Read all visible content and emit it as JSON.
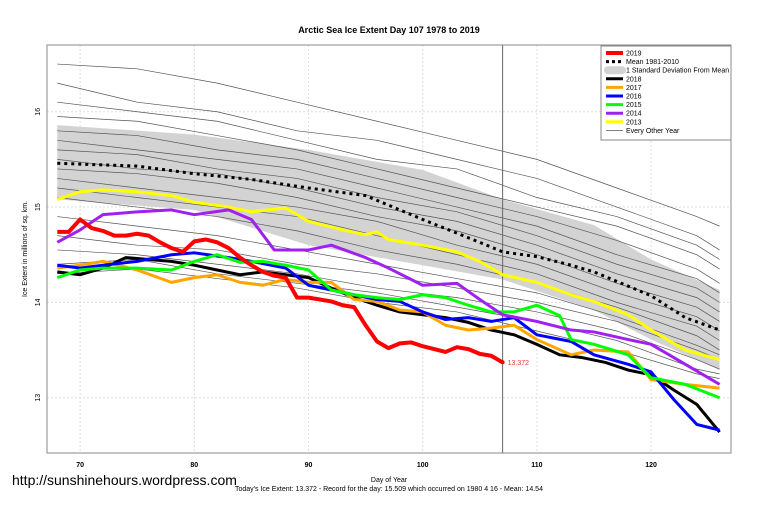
{
  "watermark": "http://sunshinehours.wordpress.com",
  "chart_data": {
    "type": "line",
    "title": "Arctic Sea Ice Extent Day 107 1978 to 2019",
    "xlabel": "Day of Year",
    "ylabel": "Ice Extent in millions of sq. km.",
    "subtitle": "Today's Ice Extent: 13.372  - Record for the day: 15.509 which occurred on 1980 4 16  - Mean: 14.54",
    "xlim": [
      67.1,
      127
    ],
    "ylim": [
      12.42,
      16.7
    ],
    "xticks": [
      70,
      80,
      90,
      100,
      110,
      120
    ],
    "yticks": [
      13,
      14,
      15,
      16
    ],
    "grid": true,
    "current_day": 107,
    "annotation": {
      "x": 107,
      "y": 13.372,
      "text": "13.372"
    },
    "legend_position": "top-right",
    "legend": [
      "2019",
      "Mean 1981-2010",
      "1 Standard Deviation From Mean",
      "2018",
      "2017",
      "2016",
      "2015",
      "2014",
      "2013",
      "Every Other Year"
    ],
    "sd_band": {
      "x": [
        68,
        80,
        90,
        100,
        107,
        115,
        120,
        126
      ],
      "upper": [
        15.86,
        15.76,
        15.6,
        15.39,
        15.08,
        14.81,
        14.45,
        14.13
      ],
      "lower": [
        15.08,
        14.97,
        14.6,
        14.39,
        14.24,
        13.92,
        13.61,
        13.29
      ]
    },
    "mean": {
      "name": "Mean 1981-2010",
      "color": "#000000",
      "x": [
        68,
        70,
        75,
        80,
        85,
        90,
        95,
        100,
        105,
        107,
        110,
        113,
        115,
        120,
        123,
        126
      ],
      "y": [
        15.46,
        15.45,
        15.43,
        15.35,
        15.29,
        15.2,
        15.12,
        14.87,
        14.63,
        14.53,
        14.48,
        14.39,
        14.32,
        14.07,
        13.84,
        13.71
      ]
    },
    "series": [
      {
        "name": "2019",
        "color": "#ff0000",
        "width": 4,
        "x": [
          68,
          69,
          70,
          71,
          72,
          73,
          74,
          75,
          76,
          77,
          78,
          79,
          80,
          81,
          82,
          83,
          84,
          85,
          86,
          87,
          88,
          89,
          90,
          91,
          92,
          93,
          94,
          95,
          96,
          97,
          98,
          99,
          100,
          101,
          102,
          103,
          104,
          105,
          106,
          107
        ],
        "y": [
          14.74,
          14.74,
          14.87,
          14.78,
          14.75,
          14.7,
          14.7,
          14.72,
          14.7,
          14.63,
          14.57,
          14.53,
          14.64,
          14.66,
          14.63,
          14.57,
          14.47,
          14.39,
          14.32,
          14.28,
          14.26,
          14.05,
          14.05,
          14.03,
          14.01,
          13.97,
          13.95,
          13.76,
          13.59,
          13.52,
          13.57,
          13.58,
          13.54,
          13.51,
          13.48,
          13.53,
          13.51,
          13.46,
          13.44,
          13.37
        ]
      },
      {
        "name": "2013",
        "color": "#ffff00",
        "width": 3,
        "x": [
          68,
          70,
          72,
          75,
          78,
          80,
          83,
          85,
          88,
          90,
          93,
          95,
          96,
          97,
          100,
          103,
          105,
          107,
          110,
          113,
          115,
          118,
          120,
          123,
          126
        ],
        "y": [
          15.08,
          15.16,
          15.18,
          15.16,
          15.12,
          15.05,
          15.0,
          14.95,
          14.99,
          14.85,
          14.76,
          14.71,
          14.74,
          14.66,
          14.6,
          14.53,
          14.43,
          14.29,
          14.21,
          14.08,
          14.01,
          13.87,
          13.71,
          13.5,
          13.4
        ]
      },
      {
        "name": "2014",
        "color": "#a020f0",
        "width": 3,
        "x": [
          68,
          70,
          72,
          75,
          78,
          80,
          83,
          85,
          87,
          90,
          92,
          95,
          97,
          100,
          103,
          105,
          107,
          110,
          113,
          115,
          118,
          120,
          123,
          126
        ],
        "y": [
          14.63,
          14.76,
          14.92,
          14.95,
          14.97,
          14.92,
          14.97,
          14.87,
          14.55,
          14.55,
          14.6,
          14.47,
          14.36,
          14.18,
          14.2,
          14.03,
          13.87,
          13.8,
          13.71,
          13.69,
          13.61,
          13.56,
          13.35,
          13.14
        ]
      },
      {
        "name": "2015",
        "color": "#00ff00",
        "width": 3,
        "x": [
          68,
          70,
          72,
          75,
          78,
          80,
          82,
          84,
          86,
          88,
          90,
          92,
          94,
          96,
          98,
          100,
          102,
          104,
          106,
          108,
          110,
          112,
          113,
          115,
          118,
          120,
          123,
          126
        ],
        "y": [
          14.26,
          14.34,
          14.36,
          14.36,
          14.34,
          14.43,
          14.5,
          14.42,
          14.43,
          14.39,
          14.34,
          14.13,
          14.08,
          14.05,
          14.03,
          14.08,
          14.05,
          13.97,
          13.9,
          13.9,
          13.97,
          13.86,
          13.61,
          13.56,
          13.45,
          13.21,
          13.14,
          13.0
        ]
      },
      {
        "name": "2016",
        "color": "#0000ff",
        "width": 3,
        "x": [
          68,
          70,
          72,
          75,
          78,
          80,
          83,
          85,
          88,
          90,
          92,
          94,
          96,
          98,
          100,
          102,
          104,
          106,
          108,
          110,
          113,
          115,
          118,
          120,
          122,
          124,
          126
        ],
        "y": [
          14.39,
          14.36,
          14.39,
          14.43,
          14.5,
          14.52,
          14.47,
          14.43,
          14.36,
          14.18,
          14.13,
          14.08,
          14.03,
          14.01,
          13.9,
          13.82,
          13.84,
          13.8,
          13.84,
          13.66,
          13.59,
          13.45,
          13.35,
          13.27,
          12.98,
          12.72,
          12.66
        ]
      },
      {
        "name": "2017",
        "color": "#ffa500",
        "width": 3,
        "x": [
          68,
          70,
          72,
          75,
          78,
          80,
          82,
          84,
          86,
          88,
          90,
          92,
          94,
          96,
          98,
          100,
          102,
          104,
          106,
          108,
          110,
          113,
          115,
          118,
          120,
          123,
          126
        ],
        "y": [
          14.36,
          14.39,
          14.43,
          14.34,
          14.21,
          14.26,
          14.29,
          14.21,
          14.18,
          14.24,
          14.21,
          14.21,
          14.03,
          14.01,
          13.92,
          13.9,
          13.76,
          13.71,
          13.73,
          13.76,
          13.61,
          13.45,
          13.5,
          13.48,
          13.19,
          13.14,
          13.1
        ]
      },
      {
        "name": "2018",
        "color": "#000000",
        "width": 3,
        "x": [
          68,
          70,
          72,
          74,
          76,
          78,
          80,
          82,
          84,
          86,
          88,
          90,
          92,
          94,
          96,
          98,
          100,
          102,
          104,
          106,
          108,
          110,
          112,
          114,
          116,
          118,
          120,
          122,
          124,
          126
        ],
        "y": [
          14.32,
          14.29,
          14.36,
          14.47,
          14.45,
          14.43,
          14.39,
          14.34,
          14.29,
          14.32,
          14.29,
          14.26,
          14.15,
          14.05,
          13.97,
          13.9,
          13.87,
          13.84,
          13.79,
          13.71,
          13.66,
          13.56,
          13.45,
          13.42,
          13.37,
          13.29,
          13.24,
          13.08,
          12.93,
          12.64
        ]
      }
    ],
    "other_years": {
      "name": "Every Other Year",
      "color": "#555555",
      "x": [
        68,
        75,
        82,
        89,
        96,
        103,
        110,
        117,
        124,
        126
      ],
      "lines": [
        [
          16.5,
          16.45,
          16.3,
          16.1,
          15.9,
          15.7,
          15.5,
          15.2,
          14.9,
          14.8
        ],
        [
          16.3,
          16.1,
          16.0,
          15.8,
          15.7,
          15.5,
          15.3,
          15.0,
          14.7,
          14.55
        ],
        [
          16.1,
          16.0,
          15.9,
          15.7,
          15.5,
          15.4,
          15.1,
          14.9,
          14.6,
          14.45
        ],
        [
          15.95,
          15.9,
          15.75,
          15.6,
          15.4,
          15.2,
          15.0,
          14.8,
          14.5,
          14.35
        ],
        [
          15.8,
          15.75,
          15.6,
          15.5,
          15.3,
          15.1,
          14.9,
          14.65,
          14.35,
          14.2
        ],
        [
          15.7,
          15.6,
          15.5,
          15.4,
          15.2,
          15.0,
          14.8,
          14.5,
          14.25,
          14.1
        ],
        [
          15.6,
          15.55,
          15.4,
          15.3,
          15.1,
          14.95,
          14.7,
          14.4,
          14.15,
          14.0
        ],
        [
          15.5,
          15.4,
          15.35,
          15.2,
          15.0,
          14.85,
          14.6,
          14.3,
          14.05,
          13.9
        ],
        [
          15.4,
          15.35,
          15.25,
          15.1,
          14.9,
          14.75,
          14.5,
          14.2,
          13.95,
          13.8
        ],
        [
          15.3,
          15.2,
          15.1,
          15.0,
          14.85,
          14.6,
          14.4,
          14.1,
          13.85,
          13.7
        ],
        [
          15.2,
          15.1,
          15.0,
          14.9,
          14.7,
          14.5,
          14.3,
          14.0,
          13.75,
          13.6
        ],
        [
          15.1,
          15.0,
          14.9,
          14.75,
          14.55,
          14.4,
          14.2,
          13.95,
          13.65,
          13.5
        ],
        [
          14.9,
          14.8,
          14.7,
          14.55,
          14.4,
          14.25,
          14.1,
          13.85,
          13.55,
          13.45
        ],
        [
          14.7,
          14.6,
          14.55,
          14.4,
          14.3,
          14.15,
          14.0,
          13.8,
          13.5,
          13.4
        ],
        [
          14.55,
          14.5,
          14.4,
          14.3,
          14.15,
          14.05,
          13.9,
          13.7,
          13.4,
          13.3
        ],
        [
          14.4,
          14.45,
          14.3,
          14.2,
          14.1,
          13.95,
          13.8,
          13.6,
          13.3,
          13.25
        ],
        [
          14.3,
          14.35,
          14.25,
          14.15,
          14.0,
          13.9,
          13.7,
          13.5,
          13.25,
          13.2
        ]
      ]
    }
  }
}
